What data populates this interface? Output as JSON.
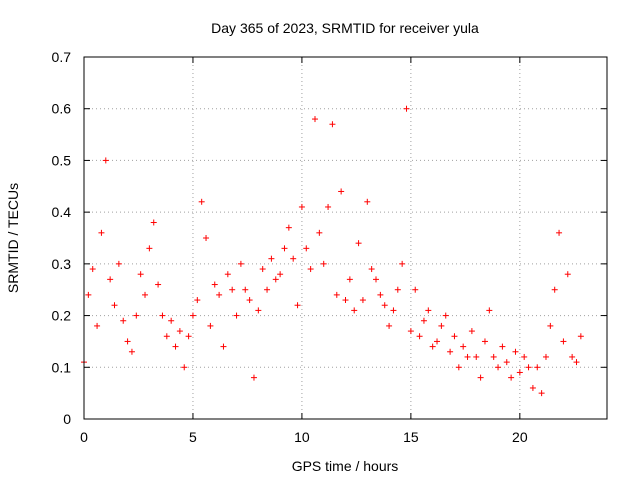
{
  "chart_data": {
    "type": "scatter",
    "title": "Day 365 of 2023, SRMTID for receiver yula",
    "xlabel": "GPS time / hours",
    "ylabel": "SRMTID / TECUs",
    "xlim": [
      0,
      24
    ],
    "ylim": [
      0,
      0.7
    ],
    "x_ticks": [
      0,
      5,
      10,
      15,
      20
    ],
    "x_tick_labels": [
      "0",
      "5",
      "10",
      "15",
      "20"
    ],
    "y_ticks": [
      0,
      0.1,
      0.2,
      0.3,
      0.4,
      0.5,
      0.6,
      0.7
    ],
    "y_tick_labels": [
      "0",
      "0.1",
      "0.2",
      "0.3",
      "0.4",
      "0.5",
      "0.6",
      "0.7"
    ],
    "grid": true,
    "marker": "+",
    "color": "#ff0000",
    "series": [
      {
        "name": "SRMTID",
        "x": [
          0.0,
          0.2,
          0.4,
          0.6,
          0.8,
          1.0,
          1.2,
          1.4,
          1.6,
          1.8,
          2.0,
          2.2,
          2.4,
          2.6,
          2.8,
          3.0,
          3.2,
          3.4,
          3.6,
          3.8,
          4.0,
          4.2,
          4.4,
          4.6,
          4.8,
          5.0,
          5.2,
          5.4,
          5.6,
          5.8,
          6.0,
          6.2,
          6.4,
          6.6,
          6.8,
          7.0,
          7.2,
          7.4,
          7.6,
          7.8,
          8.0,
          8.2,
          8.4,
          8.6,
          8.8,
          9.0,
          9.2,
          9.4,
          9.6,
          9.8,
          10.0,
          10.2,
          10.4,
          10.6,
          10.8,
          11.0,
          11.2,
          11.4,
          11.6,
          11.8,
          12.0,
          12.2,
          12.4,
          12.6,
          12.8,
          13.0,
          13.2,
          13.4,
          13.6,
          13.8,
          14.0,
          14.2,
          14.4,
          14.6,
          14.8,
          15.0,
          15.2,
          15.4,
          15.6,
          15.8,
          16.0,
          16.2,
          16.4,
          16.6,
          16.8,
          17.0,
          17.2,
          17.4,
          17.6,
          17.8,
          18.0,
          18.2,
          18.4,
          18.6,
          18.8,
          19.0,
          19.2,
          19.4,
          19.6,
          19.8,
          20.0,
          20.2,
          20.4,
          20.6,
          20.8,
          21.0,
          21.2,
          21.4,
          21.6,
          21.8,
          22.0,
          22.2,
          22.4,
          22.6,
          22.8
        ],
        "y": [
          0.11,
          0.24,
          0.29,
          0.18,
          0.36,
          0.5,
          0.27,
          0.22,
          0.3,
          0.19,
          0.15,
          0.13,
          0.2,
          0.28,
          0.24,
          0.33,
          0.38,
          0.26,
          0.2,
          0.16,
          0.19,
          0.14,
          0.17,
          0.1,
          0.16,
          0.2,
          0.23,
          0.42,
          0.35,
          0.18,
          0.26,
          0.24,
          0.14,
          0.28,
          0.25,
          0.2,
          0.3,
          0.25,
          0.23,
          0.08,
          0.21,
          0.29,
          0.25,
          0.31,
          0.27,
          0.28,
          0.33,
          0.37,
          0.31,
          0.22,
          0.41,
          0.33,
          0.29,
          0.58,
          0.36,
          0.3,
          0.41,
          0.57,
          0.24,
          0.44,
          0.23,
          0.27,
          0.21,
          0.34,
          0.23,
          0.42,
          0.29,
          0.27,
          0.24,
          0.22,
          0.18,
          0.21,
          0.25,
          0.3,
          0.6,
          0.17,
          0.25,
          0.16,
          0.19,
          0.21,
          0.14,
          0.15,
          0.18,
          0.2,
          0.13,
          0.16,
          0.1,
          0.14,
          0.12,
          0.17,
          0.12,
          0.08,
          0.15,
          0.21,
          0.12,
          0.1,
          0.14,
          0.11,
          0.08,
          0.13,
          0.09,
          0.12,
          0.1,
          0.06,
          0.1,
          0.05,
          0.12,
          0.18,
          0.25,
          0.36,
          0.15,
          0.28,
          0.12,
          0.11,
          0.16
        ]
      }
    ]
  }
}
